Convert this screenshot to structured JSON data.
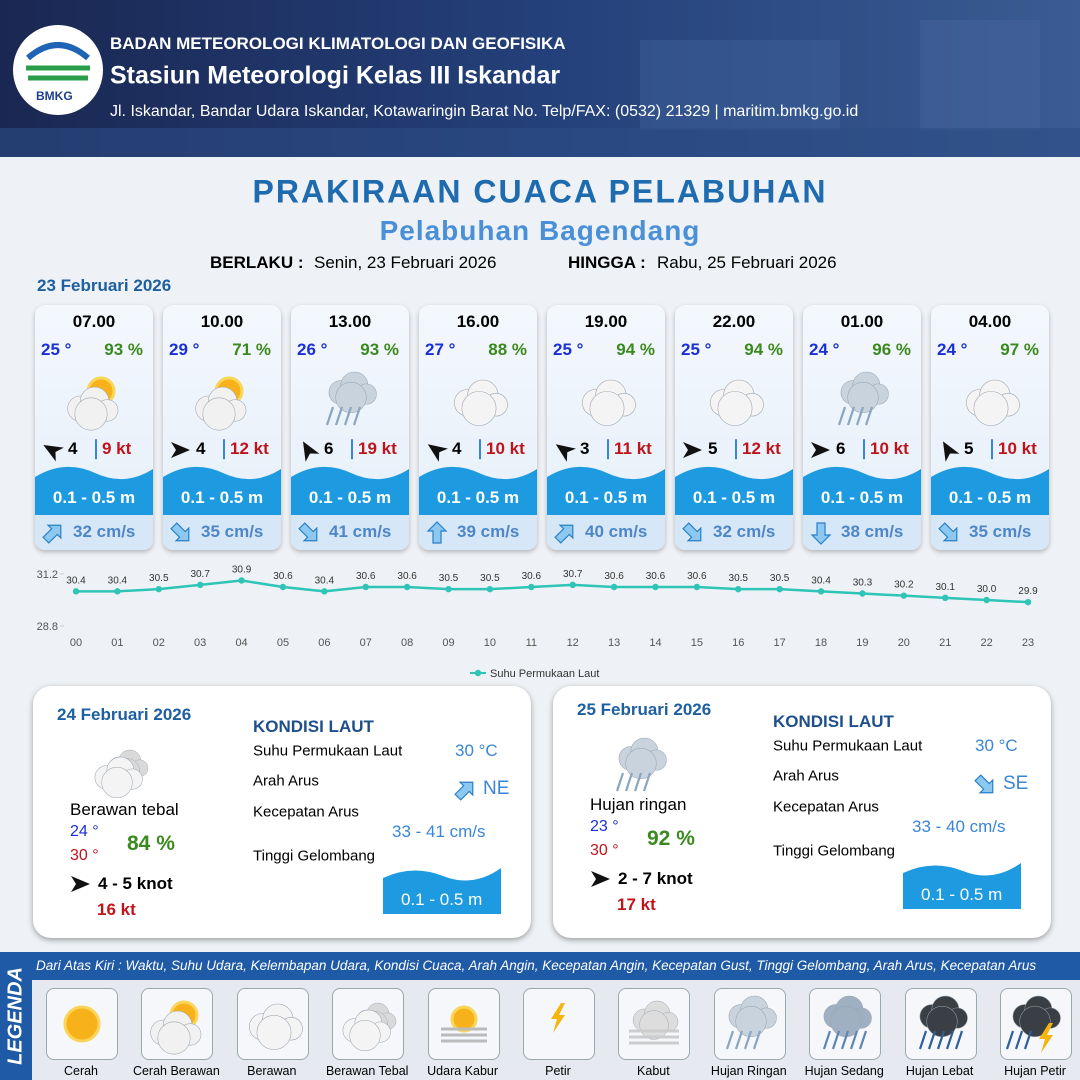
{
  "header": {
    "logo": "BMKG",
    "agency": "BADAN METEOROLOGI KLIMATOLOGI DAN GEOFISIKA",
    "station": "Stasiun Meteorologi Kelas III Iskandar",
    "address": "Jl. Iskandar, Bandar Udara Iskandar, Kotawaringin Barat No. Telp/FAX: (0532) 21329 | maritim.bmkg.go.id"
  },
  "title": "PRAKIRAAN CUACA PELABUHAN",
  "subtitle": "Pelabuhan Bagendang",
  "validity": {
    "from_label": "BERLAKU :",
    "from": "Senin, 23 Februari 2026",
    "to_label": "HINGGA :",
    "to": "Rabu, 25 Februari 2026"
  },
  "day1": {
    "date": "23 Februari 2026",
    "forecasts": [
      {
        "time": "07.00",
        "temp": "25 °",
        "humidity": "93 %",
        "wind": "4",
        "gust": "9 kt",
        "wave": "0.1 - 0.5 m",
        "current": "32 cm/s"
      },
      {
        "time": "10.00",
        "temp": "29 °",
        "humidity": "71 %",
        "wind": "4",
        "gust": "12 kt",
        "wave": "0.1 - 0.5 m",
        "current": "35 cm/s"
      },
      {
        "time": "13.00",
        "temp": "26 °",
        "humidity": "93 %",
        "wind": "6",
        "gust": "19 kt",
        "wave": "0.1 - 0.5 m",
        "current": "41 cm/s"
      },
      {
        "time": "16.00",
        "temp": "27 °",
        "humidity": "88 %",
        "wind": "4",
        "gust": "10 kt",
        "wave": "0.1 - 0.5 m",
        "current": "39 cm/s"
      },
      {
        "time": "19.00",
        "temp": "25 °",
        "humidity": "94 %",
        "wind": "3",
        "gust": "11 kt",
        "wave": "0.1 - 0.5 m",
        "current": "40 cm/s"
      },
      {
        "time": "22.00",
        "temp": "25 °",
        "humidity": "94 %",
        "wind": "5",
        "gust": "12 kt",
        "wave": "0.1 - 0.5 m",
        "current": "32 cm/s"
      },
      {
        "time": "01.00",
        "temp": "24 °",
        "humidity": "96 %",
        "wind": "6",
        "gust": "10 kt",
        "wave": "0.1 - 0.5 m",
        "current": "38 cm/s"
      },
      {
        "time": "04.00",
        "temp": "24 °",
        "humidity": "97 %",
        "wind": "5",
        "gust": "10 kt",
        "wave": "0.1 - 0.5 m",
        "current": "35 cm/s"
      }
    ]
  },
  "chart_data": {
    "type": "line",
    "categories": [
      "00",
      "01",
      "02",
      "03",
      "04",
      "05",
      "06",
      "07",
      "08",
      "09",
      "10",
      "11",
      "12",
      "13",
      "14",
      "15",
      "16",
      "17",
      "18",
      "19",
      "20",
      "21",
      "22",
      "23"
    ],
    "series": [
      {
        "name": "Suhu Permukaan Laut",
        "color": "#2ec4b6",
        "values": [
          30.4,
          30.4,
          30.5,
          30.7,
          30.9,
          30.6,
          30.4,
          30.6,
          30.6,
          30.5,
          30.5,
          30.6,
          30.7,
          30.6,
          30.6,
          30.6,
          30.5,
          30.5,
          30.4,
          30.3,
          30.2,
          30.1,
          30.0,
          29.9
        ],
        "value_labels": [
          "30.4",
          "30.4",
          "30.5",
          "30.7",
          "30.9",
          "30.6",
          "30.4",
          "30.6",
          "30.6",
          "30.5",
          "30.5",
          "30.6",
          "30.7",
          "30.6",
          "30.6",
          "30.6",
          "30.5",
          "30.5",
          "30.4",
          "30.3",
          "30.2",
          "30.1",
          "30.0",
          "29.9"
        ]
      }
    ],
    "ylim": [
      28.8,
      31.2
    ],
    "yticks": [
      28.8,
      31.2
    ],
    "legend": "bottom"
  },
  "sea_labels": {
    "heading": "KONDISI LAUT",
    "sst": "Suhu Permukaan Laut",
    "current_dir": "Arah Arus",
    "current_speed": "Kecepatan Arus",
    "wave": "Tinggi Gelombang"
  },
  "panels": [
    {
      "date": "24 Februari 2026",
      "weather": "Berawan tebal",
      "tmin": "24 °",
      "tmax": "30 °",
      "humidity": "84 %",
      "wind": "4  - 5 knot",
      "gust": "16 kt",
      "sst": "30 °C",
      "current_dir": "NE",
      "current_speed": "33  - 41 cm/s",
      "wave": "0.1 - 0.5 m"
    },
    {
      "date": "25 Februari 2026",
      "weather": "Hujan ringan",
      "tmin": "23 °",
      "tmax": "30 °",
      "humidity": "92 %",
      "wind": "2  - 7 knot",
      "gust": "17 kt",
      "sst": "30 °C",
      "current_dir": "SE",
      "current_speed": "33 - 40 cm/s",
      "wave": "0.1 - 0.5 m"
    }
  ],
  "legend": {
    "title": "LEGENDA",
    "description": "Dari Atas Kiri : Waktu, Suhu Udara, Kelembapan Udara, Kondisi Cuaca, Arah Angin, Kecepatan Angin, Kecepatan Gust, Tinggi Gelombang, Arah Arus, Kecepatan Arus",
    "items": [
      "Cerah",
      "Cerah Berawan",
      "Berawan",
      "Berawan Tebal",
      "Udara Kabur",
      "Petir",
      "Kabut",
      "Hujan Ringan",
      "Hujan Sedang",
      "Hujan Lebat",
      "Hujan Petir"
    ]
  }
}
